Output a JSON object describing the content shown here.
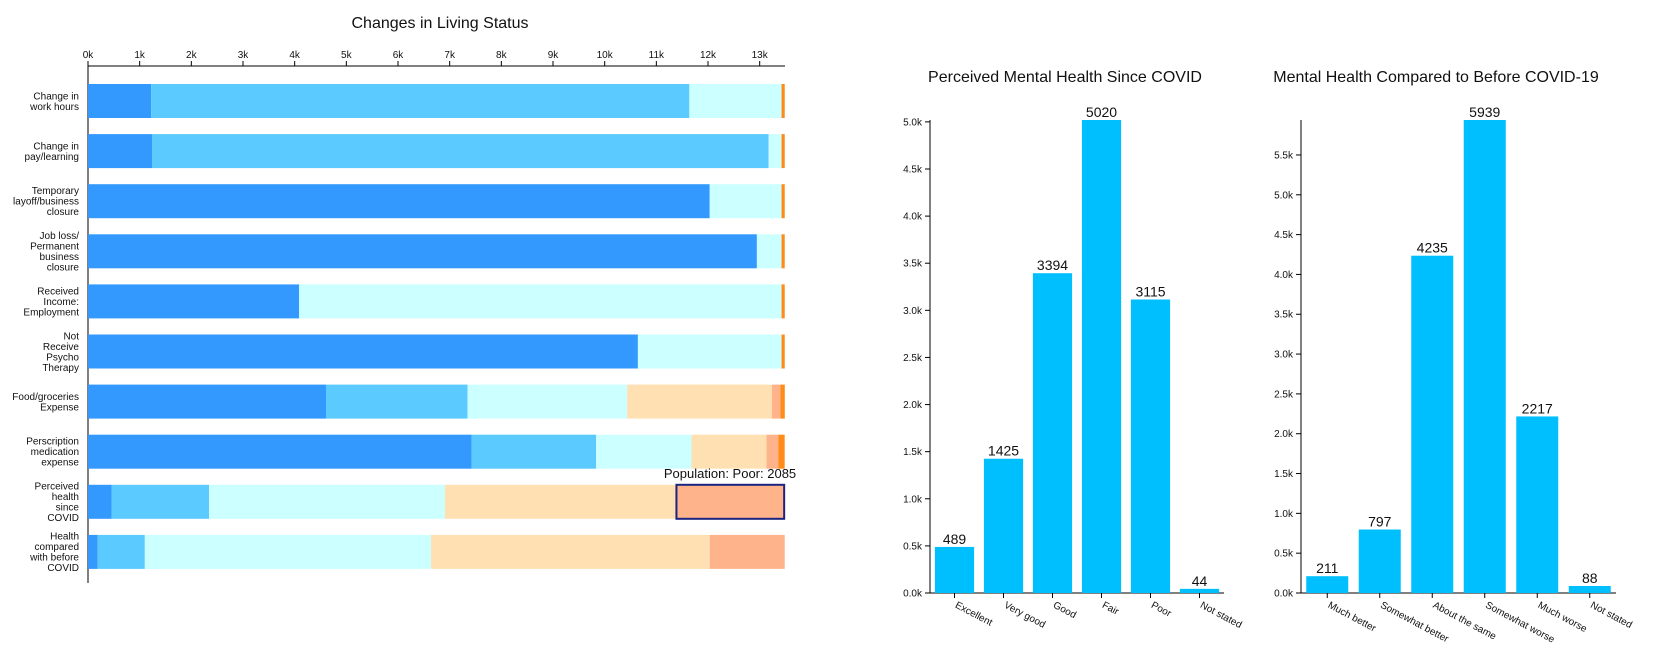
{
  "chart_data": [
    {
      "type": "stacked-bar",
      "title": "Changes in Living Status",
      "categories": [
        [
          "Change in",
          "work hours"
        ],
        [
          "Change in",
          "pay/learning"
        ],
        [
          "Temporary",
          "layoff/business",
          "closure"
        ],
        [
          "Job loss/",
          "Permanent",
          "business",
          "closure"
        ],
        [
          "Received",
          "Income:",
          "Employment"
        ],
        [
          "Not",
          "Receive",
          "Psycho",
          "Therapy"
        ],
        [
          "Food/groceries",
          "Expense"
        ],
        [
          "Perscription",
          "medication",
          "expense"
        ],
        [
          "Perceived",
          "health",
          "since",
          "COVID"
        ],
        [
          "Health",
          "compared",
          "with before",
          "COVID"
        ]
      ],
      "series": [
        {
          "color": "#3399ff",
          "values": [
            1224,
            1245,
            12033,
            12946,
            4087,
            10643,
            4606,
            7427,
            456,
            187
          ]
        },
        {
          "color": "#5bcbff",
          "values": [
            10415,
            11929,
            null,
            null,
            null,
            null,
            2739,
            2407,
            1888,
            913
          ]
        },
        {
          "color": "#ccffff",
          "values": [
            1784,
            249,
            1390,
            477,
            9336,
            2780,
            3091,
            1846,
            4564,
            5539
          ]
        },
        {
          "color": "#ffe0b3",
          "values": [
            null,
            null,
            null,
            null,
            null,
            null,
            2801,
            1452,
            4481,
            5394
          ]
        },
        {
          "color": "#ffb38a",
          "values": [
            null,
            null,
            null,
            null,
            null,
            null,
            166,
            228,
            2085,
            1452
          ]
        },
        {
          "color": "#ff8c1a",
          "values": [
            62,
            62,
            62,
            62,
            62,
            62,
            83,
            124,
            null,
            null
          ]
        }
      ],
      "xlim": [
        0,
        13490
      ],
      "xticks": [
        {
          "value": 0,
          "label": "0k"
        },
        {
          "value": 1000,
          "label": "1k"
        },
        {
          "value": 2000,
          "label": "2k"
        },
        {
          "value": 3000,
          "label": "3k"
        },
        {
          "value": 4000,
          "label": "4k"
        },
        {
          "value": 5000,
          "label": "5k"
        },
        {
          "value": 6000,
          "label": "6k"
        },
        {
          "value": 7000,
          "label": "7k"
        },
        {
          "value": 8000,
          "label": "8k"
        },
        {
          "value": 9000,
          "label": "9k"
        },
        {
          "value": 10000,
          "label": "10k"
        },
        {
          "value": 11000,
          "label": "11k"
        },
        {
          "value": 12000,
          "label": "12k"
        },
        {
          "value": 13000,
          "label": "13k"
        }
      ],
      "tooltip": "Population: Poor: 2085",
      "highlight": {
        "series": 4,
        "index": 8
      }
    },
    {
      "type": "bar",
      "title": "Perceived Mental Health Since COVID",
      "color": "#00bfff",
      "categories": [
        "Excellent",
        "Very good",
        "Good",
        "Fair",
        "Poor",
        "Not stated"
      ],
      "values": [
        489,
        1425,
        3394,
        5020,
        3115,
        44
      ],
      "ylim": [
        0,
        5020
      ],
      "yticks": [
        {
          "value": 0,
          "label": "0.0k"
        },
        {
          "value": 500,
          "label": "0.5k"
        },
        {
          "value": 1000,
          "label": "1.0k"
        },
        {
          "value": 1500,
          "label": "1.5k"
        },
        {
          "value": 2000,
          "label": "2.0k"
        },
        {
          "value": 2500,
          "label": "2.5k"
        },
        {
          "value": 3000,
          "label": "3.0k"
        },
        {
          "value": 3500,
          "label": "3.5k"
        },
        {
          "value": 4000,
          "label": "4.0k"
        },
        {
          "value": 4500,
          "label": "4.5k"
        },
        {
          "value": 5000,
          "label": "5.0k"
        }
      ]
    },
    {
      "type": "bar",
      "title": "Mental Health Compared to Before COVID-19",
      "color": "#00bfff",
      "categories": [
        "Much better",
        "Somewhat better",
        "About the same",
        "Somewhat worse",
        "Much worse",
        "Not stated"
      ],
      "values": [
        211,
        797,
        4235,
        5939,
        2217,
        88
      ],
      "ylim": [
        0,
        5939
      ],
      "yticks": [
        {
          "value": 0,
          "label": "0.0k"
        },
        {
          "value": 500,
          "label": "0.5k"
        },
        {
          "value": 1000,
          "label": "1.0k"
        },
        {
          "value": 1500,
          "label": "1.5k"
        },
        {
          "value": 2000,
          "label": "2.0k"
        },
        {
          "value": 2500,
          "label": "2.5k"
        },
        {
          "value": 3000,
          "label": "3.0k"
        },
        {
          "value": 3500,
          "label": "3.5k"
        },
        {
          "value": 4000,
          "label": "4.0k"
        },
        {
          "value": 4500,
          "label": "4.5k"
        },
        {
          "value": 5000,
          "label": "5.0k"
        },
        {
          "value": 5500,
          "label": "5.5k"
        }
      ]
    }
  ]
}
